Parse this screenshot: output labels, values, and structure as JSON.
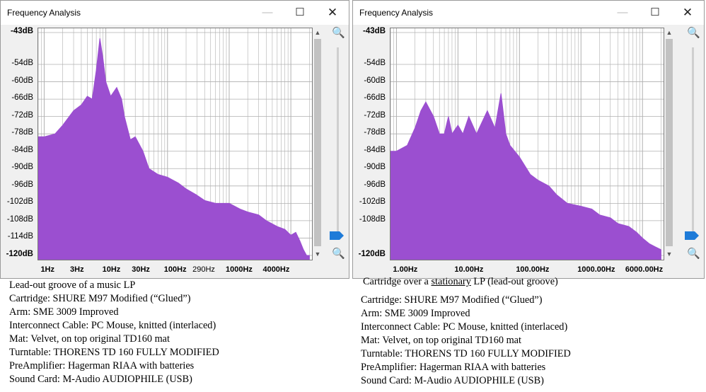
{
  "left": {
    "title": "Frequency Analysis",
    "window_buttons": {
      "minimize": "—",
      "maximize": "☐",
      "close": "✕"
    },
    "y_labels": [
      "-43dB",
      "-54dB",
      "-60dB",
      "-66dB",
      "-72dB",
      "-78dB",
      "-84dB",
      "-90dB",
      "-96dB",
      "-102dB",
      "-108dB",
      "-114dB",
      "-120dB"
    ],
    "x_labels": [
      "1Hz",
      "3Hz",
      "10Hz",
      "30Hz",
      "100Hz",
      "290Hz",
      "1000Hz",
      "4000Hz"
    ],
    "zoom_in_icon": "zoom-in-icon",
    "zoom_out_icon": "zoom-out-icon",
    "caption": {
      "line1": "Lead-out groove of a music LP",
      "line2": "Cartridge: SHURE M97 Modified (“Glued”)",
      "line3": "Arm: SME 3009 Improved",
      "line4": "Interconnect Cable: PC Mouse, knitted (interlaced)",
      "line5": "Mat: Velvet, on top original TD160 mat",
      "line6": "Turntable: THORENS TD 160 FULLY MODIFIED",
      "line7": "PreAmplifier: Hagerman RIAA with batteries",
      "line8": "Sound Card: M-Audio AUDIOPHILE (USB)"
    }
  },
  "right": {
    "title": "Frequency Analysis",
    "window_buttons": {
      "minimize": "—",
      "maximize": "☐",
      "close": "✕"
    },
    "y_labels": [
      "-43dB",
      "-54dB",
      "-60dB",
      "-66dB",
      "-72dB",
      "-78dB",
      "-84dB",
      "-90dB",
      "-96dB",
      "-102dB",
      "-108dB",
      "-120dB"
    ],
    "x_labels": [
      "1.00Hz",
      "10.00Hz",
      "100.00Hz",
      "1000.00Hz",
      "6000.00Hz"
    ],
    "caption": {
      "line1_pre": "Cartridge over a ",
      "line1_u": "stationary",
      "line1_post": " LP (lead-out groove)",
      "line2": "Cartridge: SHURE M97 Modified (“Glued”)",
      "line3": "Arm: SME 3009 Improved",
      "line4": "Interconnect Cable: PC Mouse, knitted (interlaced)",
      "line5": "Mat: Velvet, on top original TD160 mat",
      "line6": "Turntable: THORENS TD 160 FULLY MODIFIED",
      "line7": "PreAmplifier: Hagerman RIAA with batteries",
      "line8": "Sound Card: M-Audio AUDIOPHILE (USB)"
    }
  },
  "colors": {
    "spectrum": "#9b4fd0",
    "grid": "#b0b0b0",
    "zoom_thumb": "#1e7bd8"
  },
  "chart_data": [
    {
      "type": "area",
      "x_scale": "log",
      "ylim": [
        -120,
        -43
      ],
      "x": [
        0.8,
        1,
        1.5,
        2,
        3,
        4,
        5,
        6,
        7,
        8,
        9,
        10,
        12,
        15,
        18,
        20,
        25,
        30,
        40,
        50,
        70,
        100,
        150,
        200,
        290,
        400,
        600,
        1000,
        1500,
        2000,
        3000,
        4000,
        6000,
        8000,
        10000,
        12000,
        14000,
        16000,
        18000,
        20000
      ],
      "y": [
        -79,
        -79,
        -78,
        -75,
        -70,
        -68,
        -65,
        -66,
        -56,
        -45,
        -52,
        -60,
        -65,
        -62,
        -66,
        -72,
        -80,
        -79,
        -84,
        -90,
        -92,
        -93,
        -95,
        -97,
        -99,
        -101,
        -102,
        -102,
        -104,
        -105,
        -106,
        -108,
        -110,
        -111,
        -113,
        -112,
        -115,
        -118,
        -120,
        -120
      ]
    },
    {
      "type": "area",
      "x_scale": "log",
      "ylim": [
        -120,
        -43
      ],
      "x": [
        0.8,
        1,
        1.5,
        2,
        2.5,
        3,
        4,
        5,
        6,
        7,
        8,
        10,
        12,
        15,
        20,
        30,
        40,
        50,
        60,
        70,
        100,
        150,
        200,
        300,
        400,
        600,
        1000,
        1500,
        2000,
        3000,
        4000,
        6000,
        8000,
        10000,
        13000,
        16000,
        20000
      ],
      "y": [
        -84,
        -84,
        -82,
        -76,
        -70,
        -67,
        -72,
        -78,
        -78,
        -72,
        -78,
        -75,
        -78,
        -72,
        -78,
        -70,
        -76,
        -64,
        -78,
        -82,
        -86,
        -92,
        -94,
        -96,
        -99,
        -102,
        -103,
        -104,
        -106,
        -107,
        -109,
        -110,
        -112,
        -114,
        -116,
        -117,
        -118
      ]
    }
  ]
}
